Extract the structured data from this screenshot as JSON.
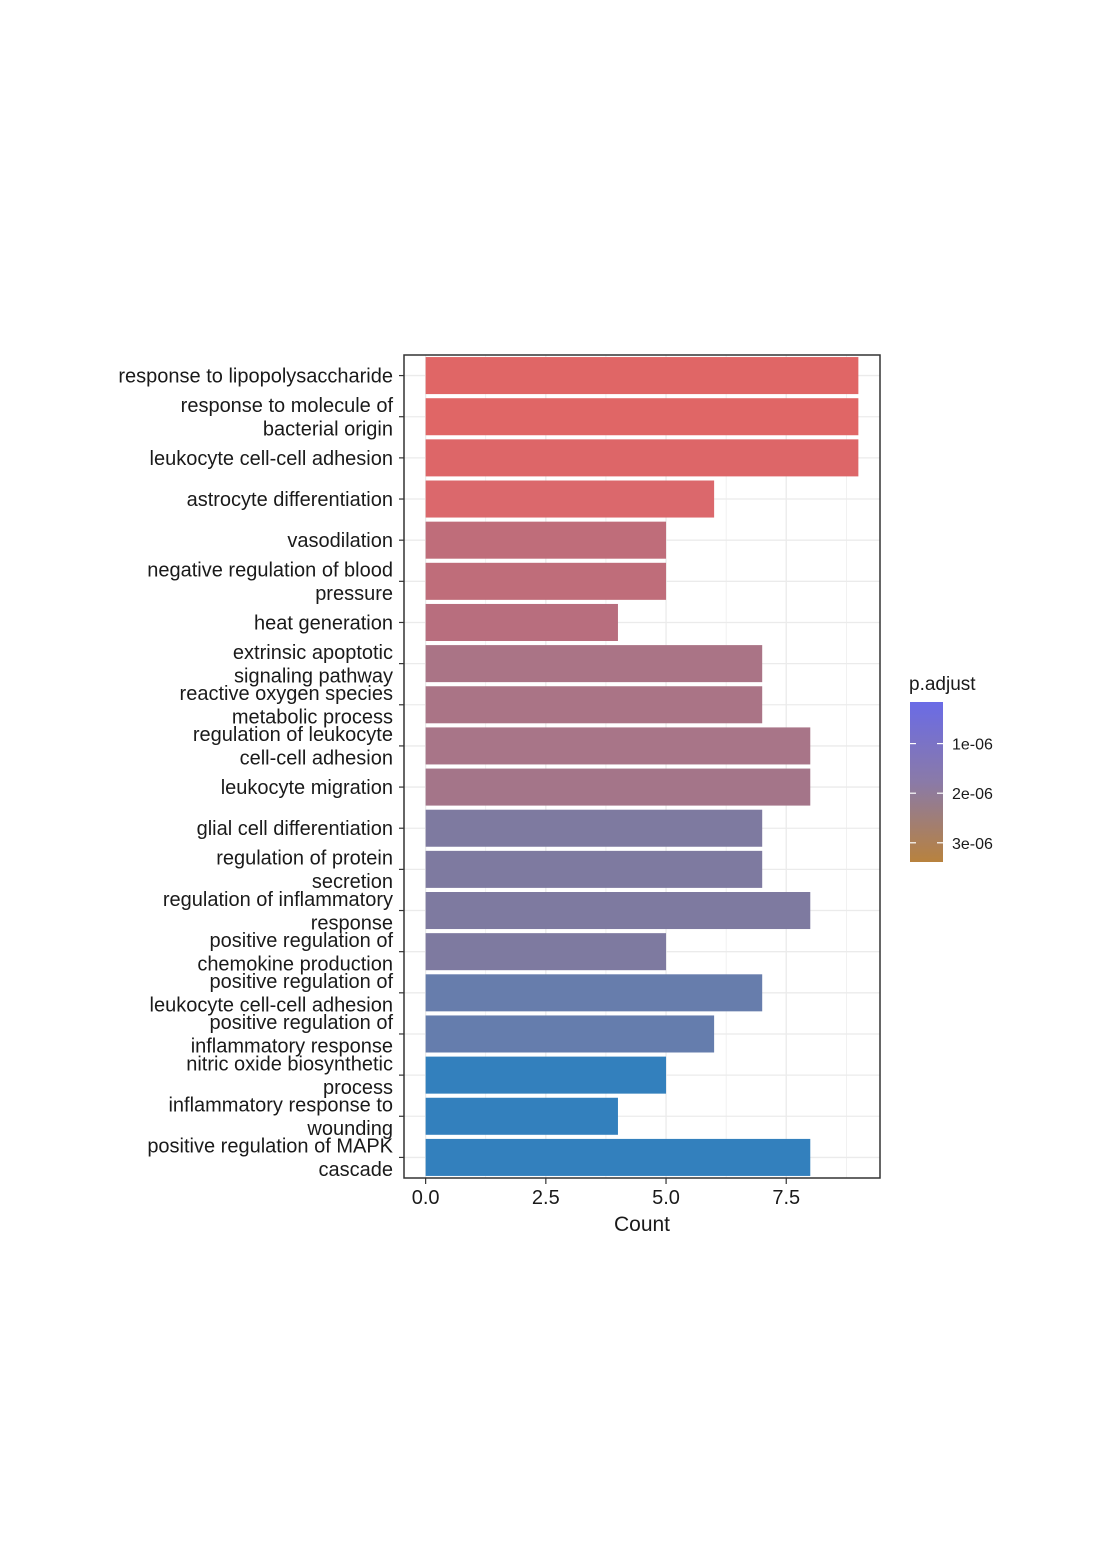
{
  "chart_data": {
    "type": "bar",
    "orientation": "horizontal",
    "categories": [
      "response to lipopolysaccharide",
      "response to molecule of\nbacterial origin",
      "leukocyte cell-cell adhesion",
      "astrocyte differentiation",
      "vasodilation",
      "negative regulation of blood\npressure",
      "heat generation",
      "extrinsic apoptotic\nsignaling pathway",
      "reactive oxygen species\nmetabolic process",
      "regulation of leukocyte\ncell-cell adhesion",
      "leukocyte migration",
      "glial cell differentiation",
      "regulation of protein\nsecretion",
      "regulation of inflammatory\nresponse",
      "positive regulation of\nchemokine production",
      "positive regulation of\nleukocyte cell-cell adhesion",
      "positive regulation of\ninflammatory response",
      "nitric oxide biosynthetic\nprocess",
      "inflammatory response to\nwounding",
      "positive regulation of MAPK\ncascade"
    ],
    "values": [
      9,
      9,
      9,
      6,
      5,
      5,
      4,
      7,
      7,
      8,
      8,
      7,
      7,
      8,
      5,
      7,
      6,
      5,
      4,
      8
    ],
    "bar_colors": [
      "#e06666",
      "#e06666",
      "#dd6668",
      "#db686c",
      "#bf6d7a",
      "#bf6d7a",
      "#b86e7e",
      "#aa7486",
      "#aa7486",
      "#a87588",
      "#a47589",
      "#7e7aa0",
      "#7e7aa0",
      "#7e7aa0",
      "#7e7aa0",
      "#677dac",
      "#657dad",
      "#3380bd",
      "#3380bd",
      "#3380bd"
    ],
    "xlabel": "Count",
    "ylabel": "",
    "xlim": [
      -0.45,
      9.45
    ],
    "xticks": [
      0.0,
      2.5,
      5.0,
      7.5
    ],
    "xtick_labels": [
      "0.0",
      "2.5",
      "5.0",
      "7.5"
    ],
    "grid": true,
    "legend": {
      "title": "p.adjust",
      "placement": "right",
      "gradient_top": "#6a6be6",
      "gradient_mid": "#8a7aa8",
      "gradient_bottom": "#b8823e",
      "ticks": [
        "1e-06",
        "2e-06",
        "3e-06"
      ],
      "tick_fractions": [
        0.26,
        0.57,
        0.88
      ]
    }
  }
}
